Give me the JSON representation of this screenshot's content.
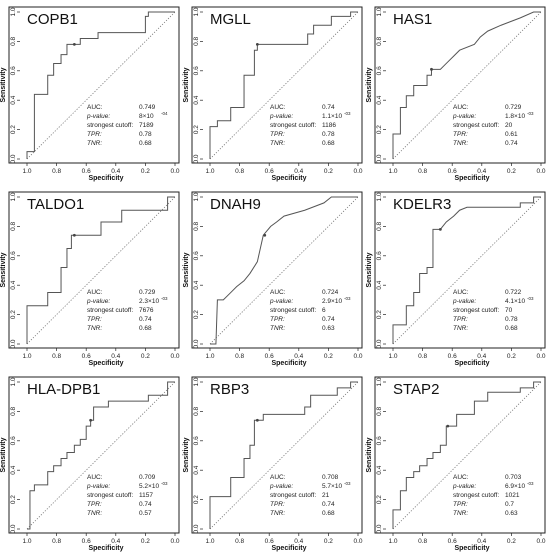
{
  "chart_data": [
    {
      "type": "line",
      "title": "COPB1",
      "xlabel": "Specificity",
      "ylabel": "Sensitivity",
      "xlim": [
        1.0,
        0.0
      ],
      "ylim": [
        0.0,
        1.0
      ],
      "x_ticks": [
        "1.0",
        "0.8",
        "0.6",
        "0.4",
        "0.2",
        "0.0"
      ],
      "y_ticks": [
        "0.0",
        "0.2",
        "0.4",
        "0.6",
        "0.8",
        "1.0"
      ],
      "stats": {
        "auc_label": "AUC:",
        "auc": "0.749",
        "p_label": "p-value:",
        "p_value": "8×10",
        "p_exp": "-04",
        "cutoff_label": "strongest cutoff:",
        "cutoff": "7189",
        "tpr_label": "TPR:",
        "tpr": "0.78",
        "tnr_label": "TNR:",
        "tnr": "0.68"
      },
      "cutoff_point": [
        0.68,
        0.78
      ],
      "roc": [
        [
          1,
          0
        ],
        [
          1,
          0.05
        ],
        [
          0.95,
          0.05
        ],
        [
          0.95,
          0.44
        ],
        [
          0.86,
          0.44
        ],
        [
          0.86,
          0.57
        ],
        [
          0.82,
          0.57
        ],
        [
          0.82,
          0.65
        ],
        [
          0.77,
          0.65
        ],
        [
          0.77,
          0.71
        ],
        [
          0.73,
          0.71
        ],
        [
          0.73,
          0.78
        ],
        [
          0.64,
          0.78
        ],
        [
          0.64,
          0.82
        ],
        [
          0.52,
          0.82
        ],
        [
          0.52,
          0.86
        ],
        [
          0.2,
          0.86
        ],
        [
          0.2,
          0.97
        ],
        [
          0.18,
          0.97
        ],
        [
          0.18,
          1
        ],
        [
          0,
          1
        ]
      ]
    },
    {
      "type": "line",
      "title": "MGLL",
      "xlabel": "Specificity",
      "ylabel": "Sensitivity",
      "xlim": [
        1.0,
        0.0
      ],
      "ylim": [
        0.0,
        1.0
      ],
      "x_ticks": [
        "1.0",
        "0.8",
        "0.6",
        "0.4",
        "0.2",
        "0.0"
      ],
      "y_ticks": [
        "0.0",
        "0.2",
        "0.4",
        "0.6",
        "0.8",
        "1.0"
      ],
      "stats": {
        "auc_label": "AUC:",
        "auc": "0.74",
        "p_label": "p-value:",
        "p_value": "1.1×10",
        "p_exp": "-03",
        "cutoff_label": "strongest cutoff:",
        "cutoff": "1186",
        "tpr_label": "TPR:",
        "tpr": "0.78",
        "tnr_label": "TNR:",
        "tnr": "0.68"
      },
      "cutoff_point": [
        0.68,
        0.78
      ],
      "roc": [
        [
          1,
          0
        ],
        [
          1,
          0.22
        ],
        [
          0.95,
          0.22
        ],
        [
          0.95,
          0.26
        ],
        [
          0.86,
          0.26
        ],
        [
          0.86,
          0.35
        ],
        [
          0.77,
          0.35
        ],
        [
          0.77,
          0.57
        ],
        [
          0.7,
          0.57
        ],
        [
          0.7,
          0.74
        ],
        [
          0.68,
          0.74
        ],
        [
          0.68,
          0.78
        ],
        [
          0.34,
          0.78
        ],
        [
          0.34,
          0.85
        ],
        [
          0.3,
          0.85
        ],
        [
          0.3,
          0.91
        ],
        [
          0.18,
          0.91
        ],
        [
          0.18,
          0.97
        ],
        [
          0.05,
          0.97
        ],
        [
          0.05,
          1
        ],
        [
          0,
          1
        ]
      ]
    },
    {
      "type": "line",
      "title": "HAS1",
      "xlabel": "Specificity",
      "ylabel": "Sensitivity",
      "xlim": [
        1.0,
        0.0
      ],
      "ylim": [
        0.0,
        1.0
      ],
      "x_ticks": [
        "1.0",
        "0.8",
        "0.6",
        "0.4",
        "0.2",
        "0.0"
      ],
      "y_ticks": [
        "0.0",
        "0.2",
        "0.4",
        "0.6",
        "0.8",
        "1.0"
      ],
      "stats": {
        "auc_label": "AUC:",
        "auc": "0.729",
        "p_label": "p-value:",
        "p_value": "1.8×10",
        "p_exp": "-03",
        "cutoff_label": "strongest cutoff:",
        "cutoff": "20",
        "tpr_label": "TPR:",
        "tpr": "0.61",
        "tnr_label": "TNR:",
        "tnr": "0.74"
      },
      "cutoff_point": [
        0.74,
        0.61
      ],
      "roc": [
        [
          1,
          0
        ],
        [
          1,
          0.17
        ],
        [
          0.95,
          0.17
        ],
        [
          0.95,
          0.35
        ],
        [
          0.91,
          0.35
        ],
        [
          0.91,
          0.43
        ],
        [
          0.86,
          0.43
        ],
        [
          0.86,
          0.5
        ],
        [
          0.77,
          0.5
        ],
        [
          0.77,
          0.57
        ],
        [
          0.74,
          0.57
        ],
        [
          0.74,
          0.61
        ],
        [
          0.68,
          0.61
        ],
        [
          0.64,
          0.65
        ],
        [
          0.59,
          0.7
        ],
        [
          0.55,
          0.74
        ],
        [
          0.45,
          0.78
        ],
        [
          0.41,
          0.83
        ],
        [
          0.36,
          0.87
        ],
        [
          0.27,
          0.91
        ],
        [
          0.14,
          0.96
        ],
        [
          0.05,
          1
        ],
        [
          0,
          1
        ]
      ]
    },
    {
      "type": "line",
      "title": "TALDO1",
      "xlabel": "Specificity",
      "ylabel": "Sensitivity",
      "xlim": [
        1.0,
        0.0
      ],
      "ylim": [
        0.0,
        1.0
      ],
      "x_ticks": [
        "1.0",
        "0.8",
        "0.6",
        "0.4",
        "0.2",
        "0.0"
      ],
      "y_ticks": [
        "0.0",
        "0.2",
        "0.4",
        "0.6",
        "0.8",
        "1.0"
      ],
      "stats": {
        "auc_label": "AUC:",
        "auc": "0.729",
        "p_label": "p-value:",
        "p_value": "2.3×10",
        "p_exp": "-03",
        "cutoff_label": "strongest cutoff:",
        "cutoff": "7676",
        "tpr_label": "TPR:",
        "tpr": "0.74",
        "tnr_label": "TNR:",
        "tnr": "0.68"
      },
      "cutoff_point": [
        0.68,
        0.74
      ],
      "roc": [
        [
          1,
          0
        ],
        [
          1,
          0.26
        ],
        [
          0.86,
          0.26
        ],
        [
          0.86,
          0.35
        ],
        [
          0.77,
          0.35
        ],
        [
          0.77,
          0.52
        ],
        [
          0.73,
          0.52
        ],
        [
          0.73,
          0.65
        ],
        [
          0.7,
          0.65
        ],
        [
          0.7,
          0.74
        ],
        [
          0.5,
          0.74
        ],
        [
          0.5,
          0.83
        ],
        [
          0.36,
          0.83
        ],
        [
          0.36,
          0.91
        ],
        [
          0.05,
          0.91
        ],
        [
          0.05,
          1
        ],
        [
          0,
          1
        ]
      ]
    },
    {
      "type": "line",
      "title": "DNAH9",
      "xlabel": "Specificity",
      "ylabel": "Sensitivity",
      "xlim": [
        1.0,
        0.0
      ],
      "ylim": [
        0.0,
        1.0
      ],
      "x_ticks": [
        "1.0",
        "0.8",
        "0.6",
        "0.4",
        "0.2",
        "0.0"
      ],
      "y_ticks": [
        "0.0",
        "0.2",
        "0.4",
        "0.6",
        "0.8",
        "1.0"
      ],
      "stats": {
        "auc_label": "AUC:",
        "auc": "0.724",
        "p_label": "p-value:",
        "p_value": "2.9×10",
        "p_exp": "-03",
        "cutoff_label": "strongest cutoff:",
        "cutoff": "6",
        "tpr_label": "TPR:",
        "tpr": "0.74",
        "tnr_label": "TNR:",
        "tnr": "0.63"
      },
      "cutoff_point": [
        0.63,
        0.74
      ],
      "roc": [
        [
          1,
          0
        ],
        [
          0.96,
          0
        ],
        [
          0.95,
          0.3
        ],
        [
          0.91,
          0.3
        ],
        [
          0.86,
          0.35
        ],
        [
          0.82,
          0.39
        ],
        [
          0.77,
          0.43
        ],
        [
          0.73,
          0.48
        ],
        [
          0.68,
          0.56
        ],
        [
          0.64,
          0.74
        ],
        [
          0.59,
          0.8
        ],
        [
          0.55,
          0.83
        ],
        [
          0.5,
          0.87
        ],
        [
          0.36,
          0.91
        ],
        [
          0.23,
          0.96
        ],
        [
          0.18,
          1
        ],
        [
          0,
          1
        ]
      ]
    },
    {
      "type": "line",
      "title": "KDELR3",
      "xlabel": "Specificity",
      "ylabel": "Sensitivity",
      "xlim": [
        1.0,
        0.0
      ],
      "ylim": [
        0.0,
        1.0
      ],
      "x_ticks": [
        "1.0",
        "0.8",
        "0.6",
        "0.4",
        "0.2",
        "0.0"
      ],
      "y_ticks": [
        "0.0",
        "0.2",
        "0.4",
        "0.6",
        "0.8",
        "1.0"
      ],
      "stats": {
        "auc_label": "AUC:",
        "auc": "0.722",
        "p_label": "p-value:",
        "p_value": "4.1×10",
        "p_exp": "-03",
        "cutoff_label": "strongest cutoff:",
        "cutoff": "70",
        "tpr_label": "TPR:",
        "tpr": "0.78",
        "tnr_label": "TNR:",
        "tnr": "0.68"
      },
      "cutoff_point": [
        0.68,
        0.78
      ],
      "roc": [
        [
          1,
          0
        ],
        [
          1,
          0.13
        ],
        [
          0.91,
          0.13
        ],
        [
          0.91,
          0.26
        ],
        [
          0.86,
          0.26
        ],
        [
          0.86,
          0.35
        ],
        [
          0.82,
          0.35
        ],
        [
          0.82,
          0.48
        ],
        [
          0.77,
          0.48
        ],
        [
          0.77,
          0.52
        ],
        [
          0.73,
          0.52
        ],
        [
          0.73,
          0.78
        ],
        [
          0.68,
          0.78
        ],
        [
          0.64,
          0.83
        ],
        [
          0.59,
          0.87
        ],
        [
          0.55,
          0.91
        ],
        [
          0.5,
          0.93
        ],
        [
          0.14,
          0.93
        ],
        [
          0.14,
          0.96
        ],
        [
          0.05,
          0.96
        ],
        [
          0.05,
          1
        ],
        [
          0,
          1
        ]
      ]
    },
    {
      "type": "line",
      "title": "HLA-DPB1",
      "xlabel": "Specificity",
      "ylabel": "Sensitivity",
      "xlim": [
        1.0,
        0.0
      ],
      "ylim": [
        0.0,
        1.0
      ],
      "x_ticks": [
        "1.0",
        "0.8",
        "0.6",
        "0.4",
        "0.2",
        "0.0"
      ],
      "y_ticks": [
        "0.0",
        "0.2",
        "0.4",
        "0.6",
        "0.8",
        "1.0"
      ],
      "stats": {
        "auc_label": "AUC:",
        "auc": "0.709",
        "p_label": "p-value:",
        "p_value": "5.2×10",
        "p_exp": "-03",
        "cutoff_label": "strongest cutoff:",
        "cutoff": "1157",
        "tpr_label": "TPR:",
        "tpr": "0.74",
        "tnr_label": "TNR:",
        "tnr": "0.57"
      },
      "cutoff_point": [
        0.57,
        0.74
      ],
      "roc": [
        [
          1,
          0
        ],
        [
          0.98,
          0
        ],
        [
          0.98,
          0.26
        ],
        [
          0.95,
          0.26
        ],
        [
          0.95,
          0.3
        ],
        [
          0.86,
          0.3
        ],
        [
          0.86,
          0.39
        ],
        [
          0.82,
          0.39
        ],
        [
          0.82,
          0.43
        ],
        [
          0.77,
          0.43
        ],
        [
          0.77,
          0.48
        ],
        [
          0.73,
          0.48
        ],
        [
          0.73,
          0.52
        ],
        [
          0.68,
          0.52
        ],
        [
          0.68,
          0.57
        ],
        [
          0.64,
          0.57
        ],
        [
          0.64,
          0.61
        ],
        [
          0.6,
          0.61
        ],
        [
          0.6,
          0.7
        ],
        [
          0.57,
          0.7
        ],
        [
          0.57,
          0.74
        ],
        [
          0.55,
          0.74
        ],
        [
          0.55,
          0.83
        ],
        [
          0.45,
          0.83
        ],
        [
          0.45,
          0.87
        ],
        [
          0.18,
          0.87
        ],
        [
          0.18,
          0.91
        ],
        [
          0.05,
          0.91
        ],
        [
          0.05,
          1
        ],
        [
          0,
          1
        ]
      ]
    },
    {
      "type": "line",
      "title": "RBP3",
      "xlabel": "Specificity",
      "ylabel": "Sensitivity",
      "xlim": [
        1.0,
        0.0
      ],
      "ylim": [
        0.0,
        1.0
      ],
      "x_ticks": [
        "1.0",
        "0.8",
        "0.6",
        "0.4",
        "0.2",
        "0.0"
      ],
      "y_ticks": [
        "0.0",
        "0.2",
        "0.4",
        "0.6",
        "0.8",
        "1.0"
      ],
      "stats": {
        "auc_label": "AUC:",
        "auc": "0.708",
        "p_label": "p-value:",
        "p_value": "5.7×10",
        "p_exp": "-03",
        "cutoff_label": "strongest cutoff:",
        "cutoff": "21",
        "tpr_label": "TPR:",
        "tpr": "0.74",
        "tnr_label": "TNR:",
        "tnr": "0.68"
      },
      "cutoff_point": [
        0.68,
        0.74
      ],
      "roc": [
        [
          1,
          0
        ],
        [
          1,
          0.22
        ],
        [
          0.86,
          0.22
        ],
        [
          0.86,
          0.35
        ],
        [
          0.77,
          0.35
        ],
        [
          0.77,
          0.48
        ],
        [
          0.73,
          0.48
        ],
        [
          0.73,
          0.57
        ],
        [
          0.7,
          0.57
        ],
        [
          0.7,
          0.74
        ],
        [
          0.64,
          0.74
        ],
        [
          0.64,
          0.78
        ],
        [
          0.36,
          0.78
        ],
        [
          0.36,
          0.83
        ],
        [
          0.32,
          0.83
        ],
        [
          0.32,
          0.91
        ],
        [
          0.14,
          0.91
        ],
        [
          0.14,
          0.96
        ],
        [
          0.05,
          0.96
        ],
        [
          0.05,
          1
        ],
        [
          0,
          1
        ]
      ]
    },
    {
      "type": "line",
      "title": "STAP2",
      "xlabel": "Specificity",
      "ylabel": "Sensitivity",
      "xlim": [
        1.0,
        0.0
      ],
      "ylim": [
        0.0,
        1.0
      ],
      "x_ticks": [
        "1.0",
        "0.8",
        "0.6",
        "0.4",
        "0.2",
        "0.0"
      ],
      "y_ticks": [
        "0.0",
        "0.2",
        "0.4",
        "0.6",
        "0.8",
        "1.0"
      ],
      "stats": {
        "auc_label": "AUC:",
        "auc": "0.703",
        "p_label": "p-value:",
        "p_value": "6.9×10",
        "p_exp": "-03",
        "cutoff_label": "strongest cutoff:",
        "cutoff": "1021",
        "tpr_label": "TPR:",
        "tpr": "0.7",
        "tnr_label": "TNR:",
        "tnr": "0.63"
      },
      "cutoff_point": [
        0.63,
        0.7
      ],
      "roc": [
        [
          1,
          0
        ],
        [
          1,
          0.13
        ],
        [
          0.95,
          0.13
        ],
        [
          0.95,
          0.26
        ],
        [
          0.91,
          0.26
        ],
        [
          0.91,
          0.35
        ],
        [
          0.86,
          0.35
        ],
        [
          0.86,
          0.39
        ],
        [
          0.82,
          0.39
        ],
        [
          0.82,
          0.43
        ],
        [
          0.77,
          0.43
        ],
        [
          0.77,
          0.48
        ],
        [
          0.73,
          0.48
        ],
        [
          0.73,
          0.52
        ],
        [
          0.68,
          0.52
        ],
        [
          0.68,
          0.57
        ],
        [
          0.64,
          0.57
        ],
        [
          0.64,
          0.7
        ],
        [
          0.57,
          0.7
        ],
        [
          0.57,
          0.78
        ],
        [
          0.45,
          0.78
        ],
        [
          0.45,
          0.87
        ],
        [
          0.36,
          0.87
        ],
        [
          0.36,
          0.93
        ],
        [
          0.14,
          0.93
        ],
        [
          0.14,
          0.96
        ],
        [
          0.05,
          0.96
        ],
        [
          0.05,
          1
        ],
        [
          0,
          1
        ]
      ]
    }
  ]
}
